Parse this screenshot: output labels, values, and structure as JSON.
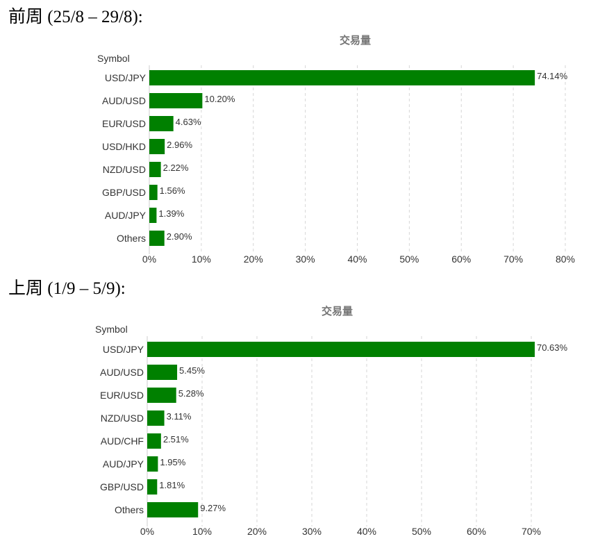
{
  "sections": [
    {
      "heading": "前周 (25/8 – 29/8):"
    },
    {
      "heading": "上周 (1/9 – 5/9):"
    }
  ],
  "chart_data": [
    {
      "type": "bar",
      "orientation": "horizontal",
      "title": "交易量",
      "ylabel": "Symbol",
      "xlabel": "",
      "categories": [
        "USD/JPY",
        "AUD/USD",
        "EUR/USD",
        "USD/HKD",
        "NZD/USD",
        "GBP/USD",
        "AUD/JPY",
        "Others"
      ],
      "values": [
        74.14,
        10.2,
        4.63,
        2.96,
        2.22,
        1.56,
        1.39,
        2.9
      ],
      "value_labels": [
        "74.14%",
        "10.20%",
        "4.63%",
        "2.96%",
        "2.22%",
        "1.56%",
        "1.39%",
        "2.90%"
      ],
      "xlim": [
        0,
        80
      ],
      "xticks": [
        "0%",
        "10%",
        "20%",
        "30%",
        "40%",
        "50%",
        "60%",
        "70%",
        "80%"
      ],
      "bar_color": "#008000",
      "grid": "vertical dashed"
    },
    {
      "type": "bar",
      "orientation": "horizontal",
      "title": "交易量",
      "ylabel": "Symbol",
      "xlabel": "",
      "categories": [
        "USD/JPY",
        "AUD/USD",
        "EUR/USD",
        "NZD/USD",
        "AUD/CHF",
        "AUD/JPY",
        "GBP/USD",
        "Others"
      ],
      "values": [
        70.63,
        5.45,
        5.28,
        3.11,
        2.51,
        1.95,
        1.81,
        9.27
      ],
      "value_labels": [
        "70.63%",
        "5.45%",
        "5.28%",
        "3.11%",
        "2.51%",
        "1.95%",
        "1.81%",
        "9.27%"
      ],
      "xlim": [
        0,
        70
      ],
      "xticks": [
        "0%",
        "10%",
        "20%",
        "30%",
        "40%",
        "50%",
        "60%",
        "70%"
      ],
      "bar_color": "#008000",
      "grid": "vertical dashed"
    }
  ]
}
